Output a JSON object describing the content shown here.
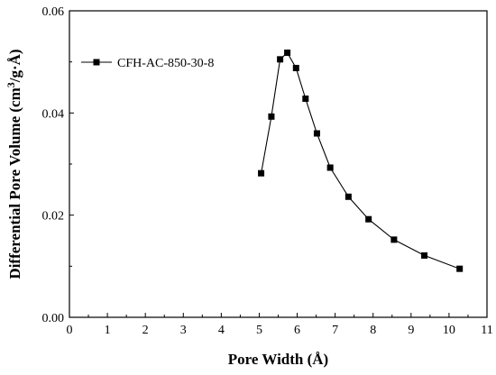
{
  "chart_data": {
    "type": "line",
    "title": "",
    "xlabel": "Pore Width (Å)",
    "ylabel": "Differential Pore Volume (cm³/g·Å)",
    "ylabel_parts": {
      "before": "Differential Pore Volume (cm",
      "sup": "3",
      "after": "/g·Å)"
    },
    "xlim": [
      0,
      11
    ],
    "ylim": [
      0.0,
      0.06
    ],
    "x_ticks": [
      0,
      1,
      2,
      3,
      4,
      5,
      6,
      7,
      8,
      9,
      10,
      11
    ],
    "x_tick_labels": [
      "0",
      "1",
      "2",
      "3",
      "4",
      "5",
      "6",
      "7",
      "8",
      "9",
      "10",
      "11"
    ],
    "y_ticks": [
      0.0,
      0.02,
      0.04,
      0.06
    ],
    "y_tick_labels": [
      "0.00",
      "0.02",
      "0.04",
      "0.06"
    ],
    "grid": false,
    "legend_position": "top-left",
    "series": [
      {
        "name": "CFH-AC-850-30-8",
        "color": "#000000",
        "marker": "square",
        "x": [
          5.05,
          5.32,
          5.55,
          5.74,
          5.97,
          6.22,
          6.52,
          6.87,
          7.35,
          7.88,
          8.55,
          9.35,
          10.28
        ],
        "y": [
          0.0282,
          0.0393,
          0.0505,
          0.0518,
          0.0488,
          0.0428,
          0.036,
          0.0293,
          0.0236,
          0.0192,
          0.0152,
          0.0121,
          0.0095
        ]
      }
    ]
  }
}
